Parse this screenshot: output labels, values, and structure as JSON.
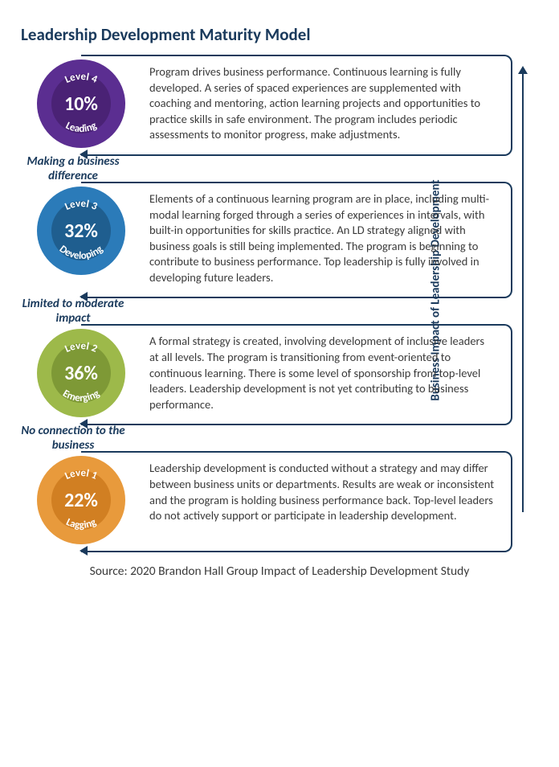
{
  "title": "Leadership Development Maturity Model",
  "axis_label": "Business Impact of Leadership Development",
  "source": "Source: 2020 Brandon Hall Group Impact of Leadership Development Study",
  "frame_color": "#1a3a5c",
  "levels": [
    {
      "level_label": "Level 4",
      "status": "Leading",
      "percent": "10%",
      "outer_color": "#5b2e91",
      "inner_color": "#4a2275",
      "description": "Program drives business performance. Continuous learning is fully developed. A series of spaced experiences are supplemented with coaching and mentoring, action learning projects and opportunities to practice skills in safe environment. The program includes periodic assessments to monitor progress, make adjustments.",
      "transition_above": null
    },
    {
      "level_label": "Level 3",
      "status": "Developing",
      "percent": "32%",
      "outer_color": "#2b7bb9",
      "inner_color": "#1f5e8f",
      "description": "Elements of a continuous learning program are in place, including multi-modal learning forged through a series of experiences in intervals, with built-in opportunities for skills practice. An LD strategy aligned with business goals is still being implemented. The program is beginning to contribute to business performance. Top leadership is fully involved in developing future leaders.",
      "transition_above": "Making a business difference"
    },
    {
      "level_label": "Level 2",
      "status": "Emerging",
      "percent": "36%",
      "outer_color": "#9db94a",
      "inner_color": "#7e9936",
      "description": "A formal strategy is created, involving development of inclusive leaders at all levels. The program is transitioning from event-oriented to continuous learning. There is some level of sponsorship from top-level leaders. Leadership development is not yet contributing to business performance.",
      "transition_above": "Limited to moderate impact"
    },
    {
      "level_label": "Level 1",
      "status": "Lagging",
      "percent": "22%",
      "outer_color": "#e89a3c",
      "inner_color": "#d17f22",
      "description": "Leadership development is conducted without a strategy and may differ between business units or departments. Results are weak or inconsistent and the program is holding business performance back. Top-level leaders do not actively support or participate in leadership development.",
      "transition_above": "No connection to the business"
    }
  ],
  "badge_text_fontsize": 13,
  "percent_fontsize": 24
}
